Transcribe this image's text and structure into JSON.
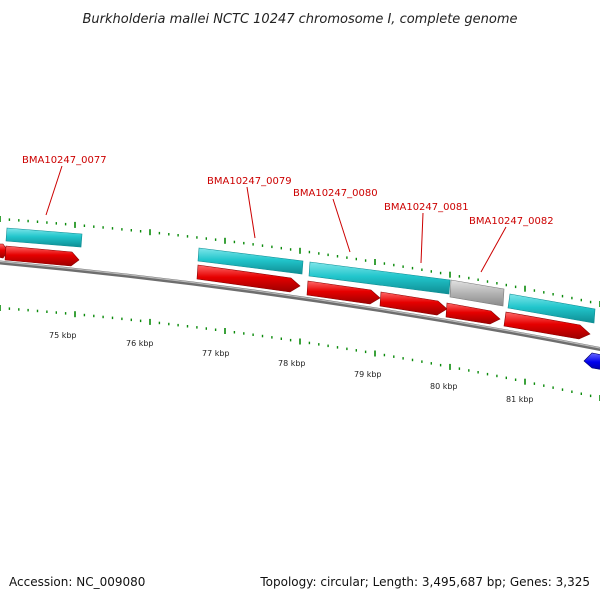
{
  "title": "Burkholderia mallei NCTC 10247 chromosome I, complete genome",
  "footer": {
    "accession": "Accession: NC_009080",
    "summary": "Topology: circular; Length: 3,495,687 bp; Genes: 3,325"
  },
  "gene_labels": [
    "BMA10247_0077",
    "BMA10247_0079",
    "BMA10247_0080",
    "BMA10247_0081",
    "BMA10247_0082"
  ],
  "kbp_ticks": [
    "75 kbp",
    "76 kbp",
    "77 kbp",
    "78 kbp",
    "79 kbp",
    "80 kbp",
    "81 kbp"
  ],
  "colors": {
    "cds_feature": "#22c6cc",
    "cds_arrow": "#e60000",
    "other_feature": "#b4b4b4",
    "reverse_feature": "#0000ee",
    "backbone": "#8c8c8c",
    "tick": "#0a8a0a",
    "label_text": "#cc0000"
  }
}
